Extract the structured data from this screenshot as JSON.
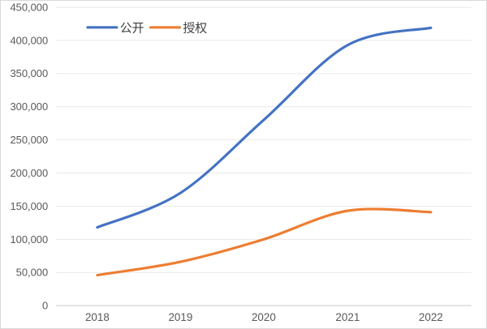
{
  "chart_data": {
    "type": "line",
    "title": "",
    "categories": [
      "2018",
      "2019",
      "2020",
      "2021",
      "2022"
    ],
    "series": [
      {
        "name": "公开",
        "semantic": "published",
        "color": "#4472C4",
        "values": [
          118000,
          170000,
          280000,
          393000,
          419000
        ]
      },
      {
        "name": "授权",
        "semantic": "granted",
        "color": "#ED7D31",
        "values": [
          46000,
          66000,
          100000,
          143000,
          141000
        ]
      }
    ],
    "xlabel": "",
    "ylabel": "",
    "ylim": [
      0,
      450000
    ],
    "y_tick_step": 50000,
    "y_tick_labels": [
      "0",
      "50,000",
      "100,000",
      "150,000",
      "200,000",
      "250,000",
      "300,000",
      "350,000",
      "400,000",
      "450,000"
    ],
    "grid": true,
    "smooth": true,
    "legend_position": "top"
  },
  "colors": {
    "background": "#FFFFFF",
    "frame_border": "#D9D9D9",
    "gridline": "#EAEAEA",
    "axis_line": "#D3D3D3",
    "tick_label": "#595959",
    "legend_label": "#404040"
  }
}
